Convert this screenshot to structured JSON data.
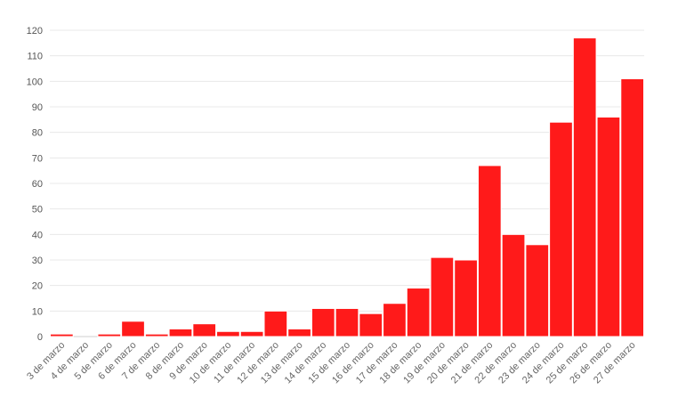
{
  "chart_data": {
    "type": "bar",
    "title": "",
    "xlabel": "",
    "ylabel": "",
    "ylim": [
      0,
      120
    ],
    "yticks": [
      0,
      10,
      20,
      30,
      40,
      50,
      60,
      70,
      80,
      90,
      100,
      110,
      120
    ],
    "grid": true,
    "bar_color": "#ff1a1a",
    "categories": [
      "3 de marzo",
      "4 de marzo",
      "5 de marzo",
      "6 de marzo",
      "7 de marzo",
      "8 de marzo",
      "9 de marzo",
      "10 de marzo",
      "11 de marzo",
      "12 de marzo",
      "13 de marzo",
      "14 de marzo",
      "15 de marzo",
      "16 de marzo",
      "17 de marzo",
      "18 de marzo",
      "19 de marzo",
      "20 de marzo",
      "21 de marzo",
      "22 de marzo",
      "23 de marzo",
      "24 de marzo",
      "25 de marzo",
      "26 de marzo",
      "27 de marzo"
    ],
    "values": [
      1,
      0,
      1,
      6,
      1,
      3,
      5,
      2,
      2,
      10,
      3,
      11,
      11,
      9,
      13,
      19,
      31,
      30,
      67,
      40,
      36,
      84,
      117,
      86,
      101
    ]
  }
}
